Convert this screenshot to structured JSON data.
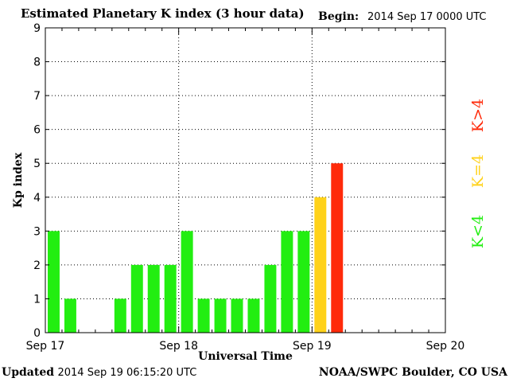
{
  "header": {
    "title": "Estimated Planetary K index (3 hour data)",
    "begin_label": "Begin:",
    "begin_value": "2014 Sep 17 0000 UTC"
  },
  "footer": {
    "updated_label": "Updated",
    "updated_value": "2014 Sep 19 06:15:20 UTC",
    "source": "NOAA/SWPC Boulder, CO USA"
  },
  "legend": [
    {
      "label": "K<4",
      "color": "#22ee11"
    },
    {
      "label": "K=4",
      "color": "#ffd21a"
    },
    {
      "label": "K>4",
      "color": "#ff2a0a"
    }
  ],
  "chart_data": {
    "type": "bar",
    "ylabel": "Kp index",
    "xlabel": "Universal Time",
    "ylim": [
      0,
      9
    ],
    "yticks": [
      "0",
      "1",
      "2",
      "3",
      "4",
      "5",
      "6",
      "7",
      "8",
      "9"
    ],
    "x_tick_labels": [
      "Sep 17",
      "Sep 18",
      "Sep 19",
      "Sep 20"
    ],
    "slots_per_day": 8,
    "days": 3,
    "grid": true,
    "values": [
      3,
      1,
      0,
      0,
      1,
      2,
      2,
      2,
      3,
      1,
      1,
      1,
      1,
      2,
      3,
      3,
      4,
      5
    ],
    "colors": {
      "below": "#22ee11",
      "equal": "#ffd21a",
      "above": "#ff2a0a"
    }
  }
}
